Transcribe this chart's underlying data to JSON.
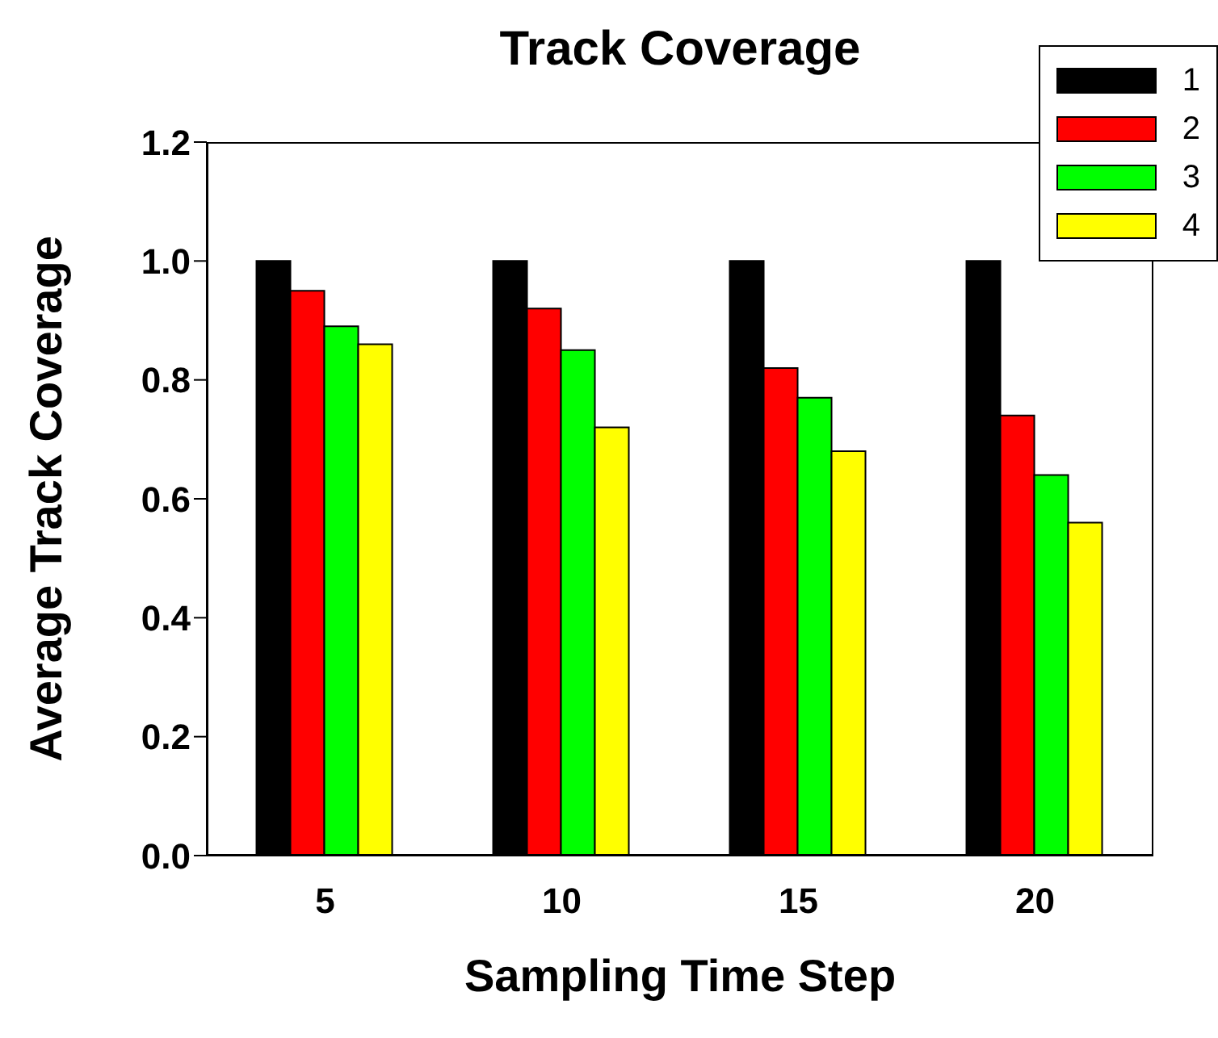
{
  "chart_data": {
    "type": "bar",
    "title": "Track Coverage",
    "xlabel": "Sampling Time Step",
    "ylabel": "Average Track Coverage",
    "categories": [
      "5",
      "10",
      "15",
      "20"
    ],
    "series": [
      {
        "name": "1",
        "color": "#000000",
        "values": [
          1.0,
          1.0,
          1.0,
          1.0
        ]
      },
      {
        "name": "2",
        "color": "#ff0000",
        "values": [
          0.95,
          0.92,
          0.82,
          0.74
        ]
      },
      {
        "name": "3",
        "color": "#00ff00",
        "values": [
          0.89,
          0.85,
          0.77,
          0.64
        ]
      },
      {
        "name": "4",
        "color": "#ffff00",
        "values": [
          0.86,
          0.72,
          0.68,
          0.56
        ]
      }
    ],
    "ylim": [
      0,
      1.2
    ],
    "yticks": [
      {
        "value": 0,
        "label": "0.0"
      },
      {
        "value": 0.2,
        "label": "0.2"
      },
      {
        "value": 0.4,
        "label": "0.4"
      },
      {
        "value": 0.6,
        "label": "0.6"
      },
      {
        "value": 0.8,
        "label": "0.8"
      },
      {
        "value": 1,
        "label": "1.0"
      },
      {
        "value": 1.2,
        "label": "1.2"
      }
    ],
    "grid": false,
    "legend": "top right"
  }
}
